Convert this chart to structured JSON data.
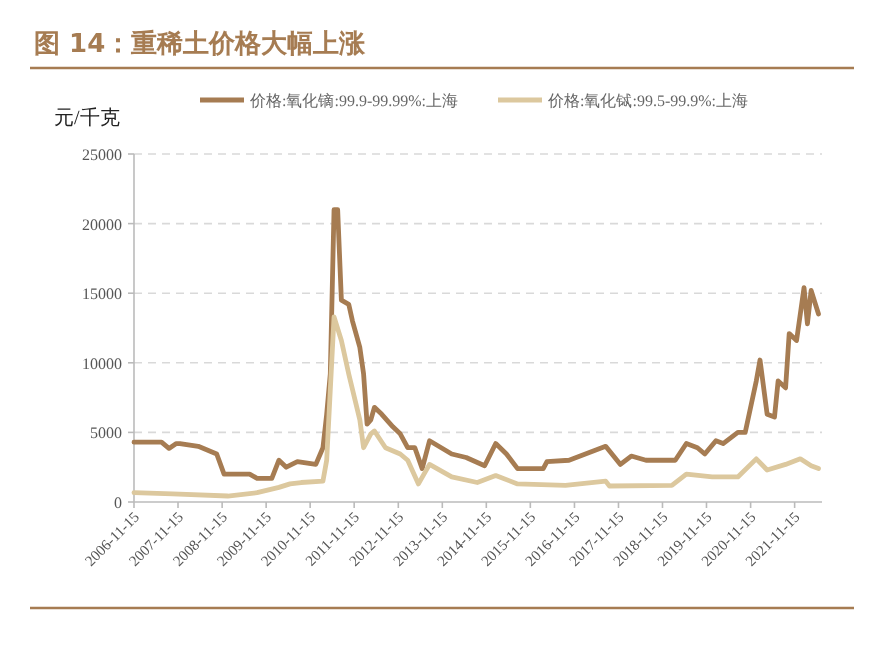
{
  "chart_data": {
    "type": "line",
    "title": "图 14：重稀土价格大幅上涨",
    "ylabel": "元/千克",
    "xlim": [
      "2006-11-15",
      "2022-06-30"
    ],
    "xticks": [
      "2006-11-15",
      "2007-11-15",
      "2008-11-15",
      "2009-11-15",
      "2010-11-15",
      "2011-11-15",
      "2012-11-15",
      "2013-11-15",
      "2014-11-15",
      "2015-11-15",
      "2016-11-15",
      "2017-11-15",
      "2018-11-15",
      "2019-11-15",
      "2020-11-15",
      "2021-11-15"
    ],
    "ylim": [
      0,
      25000
    ],
    "yticks": [
      0,
      5000,
      10000,
      15000,
      20000,
      25000
    ],
    "grid": "y",
    "legend": "top",
    "marker": "none",
    "line_style": "solid",
    "series": [
      {
        "name": "价格:氧化镝:99.9-99.99%:上海",
        "color": "#a67c52",
        "x": [
          "2006-11-15",
          "2007-07",
          "2007-09",
          "2007-11",
          "2007-12",
          "2008-05",
          "2008-10",
          "2008-12",
          "2009-07",
          "2009-09",
          "2010-01",
          "2010-03",
          "2010-05",
          "2010-08",
          "2011-01",
          "2011-03",
          "2011-04",
          "2011-05",
          "2011-06",
          "2011-07",
          "2011-08",
          "2011-10",
          "2011-11",
          "2012-01",
          "2012-02",
          "2012-03",
          "2012-04",
          "2012-05",
          "2012-07",
          "2012-10",
          "2012-12",
          "2013-02",
          "2013-04",
          "2013-06",
          "2013-08",
          "2014-02",
          "2014-06",
          "2014-11",
          "2015-02",
          "2015-05",
          "2015-08",
          "2016-03",
          "2016-04",
          "2016-10",
          "2017-08",
          "2017-12",
          "2018-03",
          "2018-07",
          "2019-03",
          "2019-06",
          "2019-09",
          "2019-11",
          "2020-02",
          "2020-04",
          "2020-08",
          "2020-10",
          "2021-01",
          "2021-02",
          "2021-04",
          "2021-06",
          "2021-07",
          "2021-09",
          "2021-10",
          "2021-12",
          "2022-02",
          "2022-03",
          "2022-04",
          "2022-06"
        ],
        "values": [
          4300,
          4300,
          3850,
          4200,
          4200,
          4000,
          3450,
          2000,
          2000,
          1700,
          1700,
          3000,
          2500,
          2900,
          2700,
          3900,
          6300,
          9200,
          21000,
          21000,
          14500,
          14200,
          13000,
          11100,
          9200,
          5600,
          5900,
          6800,
          6300,
          5400,
          4900,
          3900,
          3900,
          2400,
          4400,
          3450,
          3200,
          2600,
          4200,
          3450,
          2400,
          2400,
          2900,
          3000,
          4000,
          2700,
          3300,
          3000,
          3000,
          4200,
          3900,
          3450,
          4400,
          4200,
          5000,
          5000,
          8700,
          10200,
          6300,
          6100,
          8700,
          8200,
          12100,
          11600,
          15400,
          12800,
          15200,
          13500
        ]
      },
      {
        "name": "价格:氧化铽:99.5-99.9%:上海",
        "color": "#dcc89e",
        "x": [
          "2006-11-15",
          "2007-10",
          "2009-01",
          "2009-09",
          "2010-03",
          "2010-06",
          "2010-09",
          "2011-03",
          "2011-04",
          "2011-06",
          "2011-08",
          "2011-10",
          "2012-01",
          "2012-02",
          "2012-04",
          "2012-05",
          "2012-08",
          "2012-12",
          "2013-02",
          "2013-05",
          "2013-08",
          "2014-02",
          "2014-09",
          "2015-02",
          "2015-08",
          "2016-09",
          "2017-08",
          "2017-09",
          "2019-02",
          "2019-06",
          "2020-01",
          "2020-08",
          "2021-01",
          "2021-04",
          "2021-09",
          "2022-01",
          "2022-04",
          "2022-06"
        ],
        "values": [
          670,
          580,
          430,
          670,
          1050,
          1300,
          1400,
          1500,
          3000,
          13300,
          11600,
          9200,
          5900,
          3900,
          4900,
          5100,
          3900,
          3450,
          3000,
          1300,
          2700,
          1800,
          1400,
          1900,
          1300,
          1200,
          1500,
          1150,
          1200,
          2000,
          1800,
          1800,
          3100,
          2300,
          2700,
          3100,
          2600,
          2400
        ]
      }
    ]
  }
}
